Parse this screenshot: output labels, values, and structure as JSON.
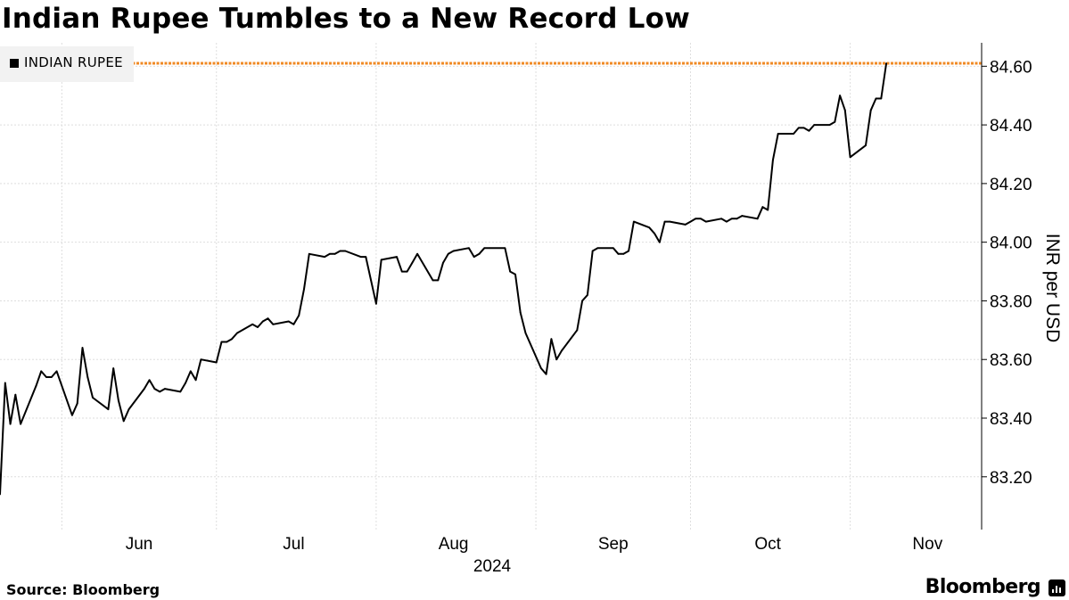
{
  "title": "Indian Rupee Tumbles to a New Record Low",
  "source": "Source: Bloomberg",
  "brand": "Bloomberg",
  "legend_label": "INDIAN RUPEE",
  "colors": {
    "line": "#000000",
    "highlight": "#f08a24",
    "grid": "#dedede",
    "legend_bg": "#f2f2f2"
  },
  "chart_data": {
    "type": "line",
    "title": "Indian Rupee Tumbles to a New Record Low",
    "ylabel": "INR per USD",
    "xlabel": "2024",
    "ylim": [
      83.02,
      84.68
    ],
    "yticks": [
      83.2,
      83.4,
      83.6,
      83.8,
      84.0,
      84.2,
      84.4,
      84.6
    ],
    "ytick_labels": [
      "83.20",
      "83.40",
      "83.60",
      "83.80",
      "84.00",
      "84.20",
      "84.40",
      "84.60"
    ],
    "xlim": [
      "2024-05-20",
      "2024-11-22"
    ],
    "month_boundaries": [
      "2024-06-01",
      "2024-07-01",
      "2024-08-01",
      "2024-09-01",
      "2024-10-01",
      "2024-11-01"
    ],
    "month_labels": [
      {
        "label": "Jun",
        "date": "2024-06-16"
      },
      {
        "label": "Jul",
        "date": "2024-07-16"
      },
      {
        "label": "Aug",
        "date": "2024-08-16"
      },
      {
        "label": "Sep",
        "date": "2024-09-16"
      },
      {
        "label": "Oct",
        "date": "2024-10-16"
      },
      {
        "label": "Nov",
        "date": "2024-11-16"
      }
    ],
    "year_label": "2024",
    "highlight_line": {
      "value": 84.61
    },
    "grid": true,
    "legend_position": "top-left",
    "series": [
      {
        "name": "INDIAN RUPEE",
        "points": [
          [
            "2024-05-20",
            83.14
          ],
          [
            "2024-05-21",
            83.52
          ],
          [
            "2024-05-22",
            83.38
          ],
          [
            "2024-05-23",
            83.48
          ],
          [
            "2024-05-24",
            83.38
          ],
          [
            "2024-05-27",
            83.51
          ],
          [
            "2024-05-28",
            83.56
          ],
          [
            "2024-05-29",
            83.54
          ],
          [
            "2024-05-30",
            83.54
          ],
          [
            "2024-05-31",
            83.56
          ],
          [
            "2024-06-03",
            83.41
          ],
          [
            "2024-06-04",
            83.45
          ],
          [
            "2024-06-05",
            83.64
          ],
          [
            "2024-06-06",
            83.54
          ],
          [
            "2024-06-07",
            83.47
          ],
          [
            "2024-06-10",
            83.43
          ],
          [
            "2024-06-11",
            83.57
          ],
          [
            "2024-06-12",
            83.46
          ],
          [
            "2024-06-13",
            83.39
          ],
          [
            "2024-06-14",
            83.43
          ],
          [
            "2024-06-17",
            83.5
          ],
          [
            "2024-06-18",
            83.53
          ],
          [
            "2024-06-19",
            83.5
          ],
          [
            "2024-06-20",
            83.49
          ],
          [
            "2024-06-21",
            83.5
          ],
          [
            "2024-06-24",
            83.49
          ],
          [
            "2024-06-25",
            83.52
          ],
          [
            "2024-06-26",
            83.56
          ],
          [
            "2024-06-27",
            83.53
          ],
          [
            "2024-06-28",
            83.6
          ],
          [
            "2024-07-01",
            83.59
          ],
          [
            "2024-07-02",
            83.66
          ],
          [
            "2024-07-03",
            83.66
          ],
          [
            "2024-07-04",
            83.67
          ],
          [
            "2024-07-05",
            83.69
          ],
          [
            "2024-07-08",
            83.72
          ],
          [
            "2024-07-09",
            83.71
          ],
          [
            "2024-07-10",
            83.73
          ],
          [
            "2024-07-11",
            83.74
          ],
          [
            "2024-07-12",
            83.72
          ],
          [
            "2024-07-15",
            83.73
          ],
          [
            "2024-07-16",
            83.72
          ],
          [
            "2024-07-17",
            83.75
          ],
          [
            "2024-07-18",
            83.84
          ],
          [
            "2024-07-19",
            83.96
          ],
          [
            "2024-07-22",
            83.95
          ],
          [
            "2024-07-23",
            83.96
          ],
          [
            "2024-07-24",
            83.96
          ],
          [
            "2024-07-25",
            83.97
          ],
          [
            "2024-07-26",
            83.97
          ],
          [
            "2024-07-29",
            83.95
          ],
          [
            "2024-07-30",
            83.95
          ],
          [
            "2024-07-31",
            83.87
          ],
          [
            "2024-08-01",
            83.79
          ],
          [
            "2024-08-02",
            83.94
          ],
          [
            "2024-08-05",
            83.95
          ],
          [
            "2024-08-06",
            83.9
          ],
          [
            "2024-08-07",
            83.9
          ],
          [
            "2024-08-08",
            83.93
          ],
          [
            "2024-08-09",
            83.96
          ],
          [
            "2024-08-12",
            83.87
          ],
          [
            "2024-08-13",
            83.87
          ],
          [
            "2024-08-14",
            83.93
          ],
          [
            "2024-08-15",
            83.96
          ],
          [
            "2024-08-16",
            83.97
          ],
          [
            "2024-08-19",
            83.98
          ],
          [
            "2024-08-20",
            83.95
          ],
          [
            "2024-08-21",
            83.96
          ],
          [
            "2024-08-22",
            83.98
          ],
          [
            "2024-08-23",
            83.98
          ],
          [
            "2024-08-26",
            83.98
          ],
          [
            "2024-08-27",
            83.9
          ],
          [
            "2024-08-28",
            83.89
          ],
          [
            "2024-08-29",
            83.76
          ],
          [
            "2024-08-30",
            83.69
          ],
          [
            "2024-09-02",
            83.57
          ],
          [
            "2024-09-03",
            83.55
          ],
          [
            "2024-09-04",
            83.67
          ],
          [
            "2024-09-05",
            83.6
          ],
          [
            "2024-09-06",
            83.63
          ],
          [
            "2024-09-09",
            83.7
          ],
          [
            "2024-09-10",
            83.8
          ],
          [
            "2024-09-11",
            83.82
          ],
          [
            "2024-09-12",
            83.97
          ],
          [
            "2024-09-13",
            83.98
          ],
          [
            "2024-09-16",
            83.98
          ],
          [
            "2024-09-17",
            83.96
          ],
          [
            "2024-09-18",
            83.96
          ],
          [
            "2024-09-19",
            83.97
          ],
          [
            "2024-09-20",
            84.07
          ],
          [
            "2024-09-23",
            84.05
          ],
          [
            "2024-09-24",
            84.03
          ],
          [
            "2024-09-25",
            84.0
          ],
          [
            "2024-09-26",
            84.07
          ],
          [
            "2024-09-27",
            84.07
          ],
          [
            "2024-09-30",
            84.06
          ],
          [
            "2024-10-01",
            84.07
          ],
          [
            "2024-10-02",
            84.08
          ],
          [
            "2024-10-03",
            84.08
          ],
          [
            "2024-10-04",
            84.07
          ],
          [
            "2024-10-07",
            84.08
          ],
          [
            "2024-10-08",
            84.07
          ],
          [
            "2024-10-09",
            84.08
          ],
          [
            "2024-10-10",
            84.08
          ],
          [
            "2024-10-11",
            84.09
          ],
          [
            "2024-10-14",
            84.08
          ],
          [
            "2024-10-15",
            84.12
          ],
          [
            "2024-10-16",
            84.11
          ],
          [
            "2024-10-17",
            84.28
          ],
          [
            "2024-10-18",
            84.37
          ],
          [
            "2024-10-21",
            84.37
          ],
          [
            "2024-10-22",
            84.39
          ],
          [
            "2024-10-23",
            84.39
          ],
          [
            "2024-10-24",
            84.38
          ],
          [
            "2024-10-25",
            84.4
          ],
          [
            "2024-10-28",
            84.4
          ],
          [
            "2024-10-29",
            84.41
          ],
          [
            "2024-10-30",
            84.5
          ],
          [
            "2024-10-31",
            84.45
          ],
          [
            "2024-11-01",
            84.29
          ],
          [
            "2024-11-04",
            84.33
          ],
          [
            "2024-11-05",
            84.45
          ],
          [
            "2024-11-06",
            84.49
          ],
          [
            "2024-11-07",
            84.49
          ],
          [
            "2024-11-08",
            84.61
          ]
        ]
      }
    ]
  }
}
